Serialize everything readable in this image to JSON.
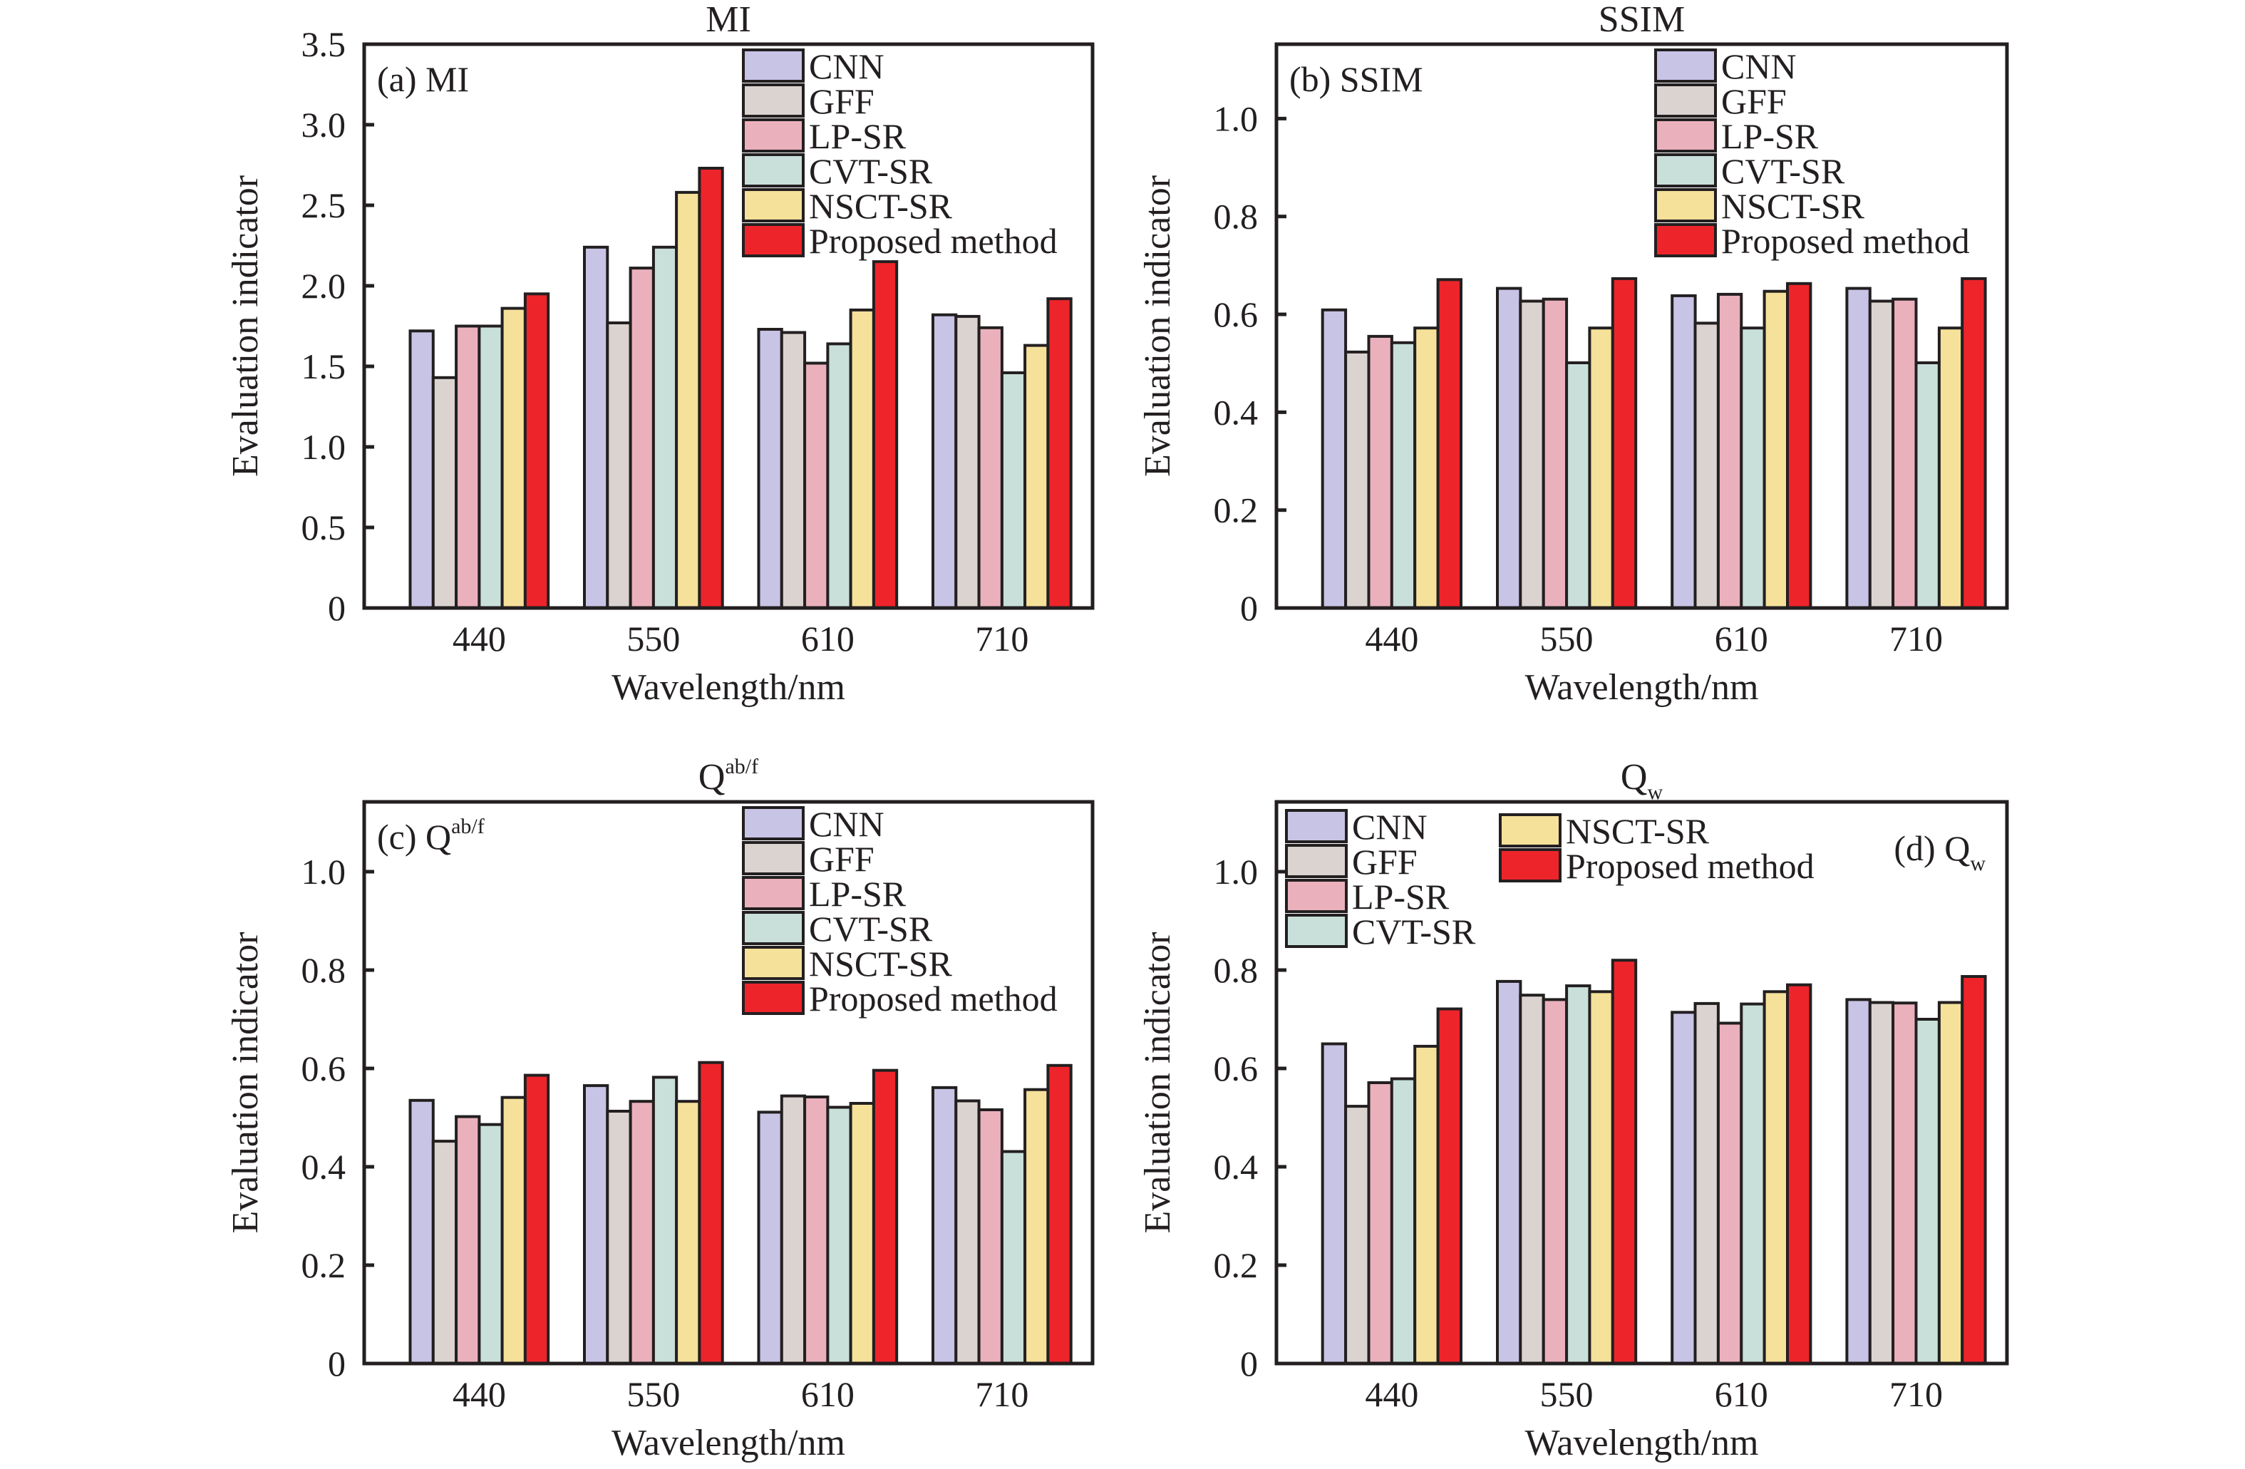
{
  "figure": {
    "series_colors": {
      "CNN": "#c8c4e6",
      "GFF": "#dbd3d0",
      "LP-SR": "#eab1bc",
      "CVT-SR": "#c9e0da",
      "NSCT-SR": "#f5e19a",
      "Proposed method": "#ee242b"
    },
    "edge_color": "#231f20"
  },
  "chart_data": [
    {
      "type": "bar",
      "title": "MI",
      "panel_label": "(a) MI",
      "xlabel": "Wavelength/nm",
      "ylabel": "Evaluation indicator",
      "categories": [
        "440",
        "550",
        "610",
        "710"
      ],
      "ylim": [
        0,
        3.5
      ],
      "yticks": [
        0,
        0.5,
        1.0,
        1.5,
        2.0,
        2.5,
        3.0,
        3.5
      ],
      "ytick_labels": [
        "0",
        "0.5",
        "1.0",
        "1.5",
        "2.0",
        "2.5",
        "3.0",
        "3.5"
      ],
      "grid": false,
      "legend_placement": "top-right",
      "legend_columns": 1,
      "series": [
        {
          "name": "CNN",
          "values": [
            1.72,
            2.24,
            1.73,
            1.82
          ]
        },
        {
          "name": "GFF",
          "values": [
            1.43,
            1.77,
            1.71,
            1.81
          ]
        },
        {
          "name": "LP-SR",
          "values": [
            1.75,
            2.11,
            1.52,
            1.74
          ]
        },
        {
          "name": "CVT-SR",
          "values": [
            1.75,
            2.24,
            1.64,
            1.46
          ]
        },
        {
          "name": "NSCT-SR",
          "values": [
            1.86,
            2.58,
            1.85,
            1.63
          ]
        },
        {
          "name": "Proposed method",
          "values": [
            1.95,
            2.73,
            2.15,
            1.92
          ]
        }
      ]
    },
    {
      "type": "bar",
      "title": "SSIM",
      "panel_label": "(b) SSIM",
      "xlabel": "Wavelength/nm",
      "ylabel": "Evaluation indicator",
      "categories": [
        "440",
        "550",
        "610",
        "710"
      ],
      "ylim": [
        0,
        1.15
      ],
      "yticks": [
        0,
        0.2,
        0.4,
        0.6,
        0.8,
        1.0
      ],
      "ytick_labels": [
        "0",
        "0.2",
        "0.4",
        "0.6",
        "0.8",
        "1.0"
      ],
      "grid": false,
      "legend_placement": "top-right",
      "legend_columns": 1,
      "series": [
        {
          "name": "CNN",
          "values": [
            0.609,
            0.653,
            0.638,
            0.653
          ]
        },
        {
          "name": "GFF",
          "values": [
            0.523,
            0.627,
            0.582,
            0.627
          ]
        },
        {
          "name": "LP-SR",
          "values": [
            0.555,
            0.631,
            0.641,
            0.631
          ]
        },
        {
          "name": "CVT-SR",
          "values": [
            0.542,
            0.501,
            0.572,
            0.501
          ]
        },
        {
          "name": "NSCT-SR",
          "values": [
            0.572,
            0.572,
            0.647,
            0.572
          ]
        },
        {
          "name": "Proposed method",
          "values": [
            0.671,
            0.673,
            0.663,
            0.673
          ]
        }
      ]
    },
    {
      "type": "bar",
      "title": "Q",
      "title_sup": "ab/f",
      "panel_label": "(c) Q",
      "panel_label_sup": "ab/f",
      "xlabel": "Wavelength/nm",
      "ylabel": "Evaluation indicator",
      "categories": [
        "440",
        "550",
        "610",
        "710"
      ],
      "ylim": [
        0,
        1.15
      ],
      "yticks": [
        0,
        0.2,
        0.4,
        0.6,
        0.8,
        1.0
      ],
      "ytick_labels": [
        "0",
        "0.2",
        "0.4",
        "0.6",
        "0.8",
        "1.0"
      ],
      "grid": false,
      "legend_placement": "top-right",
      "legend_columns": 1,
      "series": [
        {
          "name": "CNN",
          "values": [
            0.535,
            0.565,
            0.511,
            0.561
          ]
        },
        {
          "name": "GFF",
          "values": [
            0.452,
            0.513,
            0.544,
            0.534
          ]
        },
        {
          "name": "LP-SR",
          "values": [
            0.502,
            0.533,
            0.542,
            0.516
          ]
        },
        {
          "name": "CVT-SR",
          "values": [
            0.486,
            0.582,
            0.521,
            0.431
          ]
        },
        {
          "name": "NSCT-SR",
          "values": [
            0.541,
            0.533,
            0.529,
            0.557
          ]
        },
        {
          "name": "Proposed method",
          "values": [
            0.586,
            0.612,
            0.596,
            0.606
          ]
        }
      ]
    },
    {
      "type": "bar",
      "title": "Q",
      "title_sub": "w",
      "panel_label": "(d) Q",
      "panel_label_sub": "w",
      "xlabel": "Wavelength/nm",
      "ylabel": "Evaluation indicator",
      "categories": [
        "440",
        "550",
        "610",
        "710"
      ],
      "ylim": [
        0,
        1.15
      ],
      "yticks": [
        0,
        0.2,
        0.4,
        0.6,
        0.8,
        1.0
      ],
      "ytick_labels": [
        "0",
        "0.2",
        "0.4",
        "0.6",
        "0.8",
        "1.0"
      ],
      "grid": false,
      "legend_placement": "top-left",
      "legend_columns": 2,
      "series": [
        {
          "name": "CNN",
          "values": [
            0.65,
            0.777,
            0.714,
            0.74
          ]
        },
        {
          "name": "GFF",
          "values": [
            0.523,
            0.749,
            0.732,
            0.734
          ]
        },
        {
          "name": "LP-SR",
          "values": [
            0.571,
            0.74,
            0.692,
            0.733
          ]
        },
        {
          "name": "CVT-SR",
          "values": [
            0.579,
            0.768,
            0.731,
            0.7
          ]
        },
        {
          "name": "NSCT-SR",
          "values": [
            0.645,
            0.756,
            0.756,
            0.734
          ]
        },
        {
          "name": "Proposed method",
          "values": [
            0.721,
            0.82,
            0.77,
            0.787
          ]
        }
      ]
    }
  ]
}
